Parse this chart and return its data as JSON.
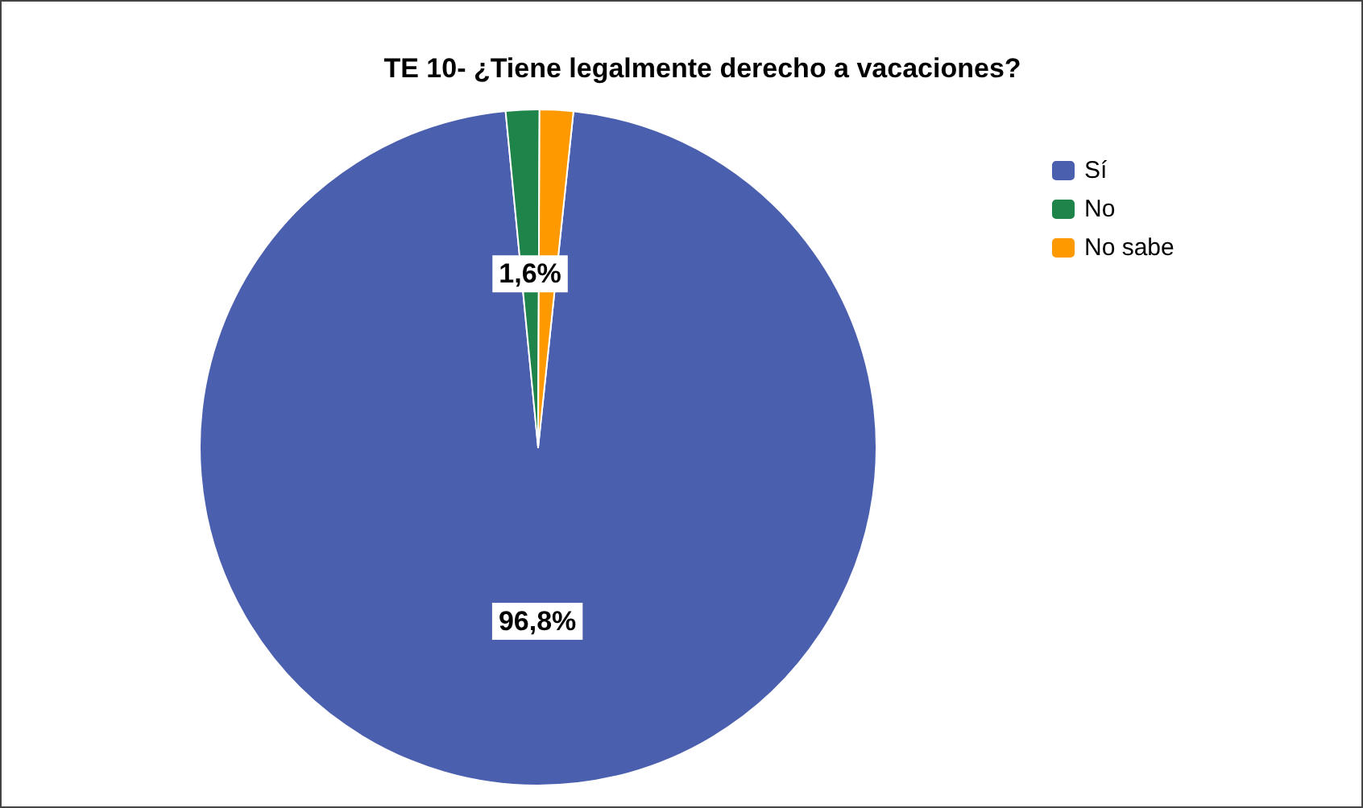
{
  "chart_data": {
    "type": "pie",
    "title": "TE 10- ¿Tiene legalmente derecho a vacaciones?",
    "categories": [
      "Sí",
      "No",
      "No sabe"
    ],
    "values": [
      96.8,
      1.6,
      1.6
    ],
    "colors": [
      "#4a5fae",
      "#1e8449",
      "#ff9900"
    ],
    "value_labels": [
      "96,8%",
      "1,6%",
      null
    ],
    "legend": "top right"
  }
}
